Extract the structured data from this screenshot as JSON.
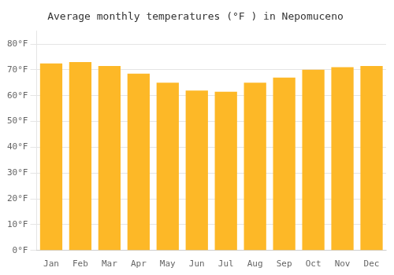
{
  "chart_data": {
    "type": "bar",
    "title": "Average monthly temperatures (°F ) in Nepomuceno",
    "categories": [
      "Jan",
      "Feb",
      "Mar",
      "Apr",
      "May",
      "Jun",
      "Jul",
      "Aug",
      "Sep",
      "Oct",
      "Nov",
      "Dec"
    ],
    "values": [
      72.5,
      73.0,
      71.5,
      68.5,
      65.0,
      62.0,
      61.5,
      65.0,
      67.0,
      70.0,
      71.0,
      71.5
    ],
    "color": "#FDB827",
    "ylim": [
      0,
      85
    ],
    "yticks": [
      {
        "value": 0,
        "label": "0°F"
      },
      {
        "value": 10,
        "label": "10°F"
      },
      {
        "value": 20,
        "label": "20°F"
      },
      {
        "value": 30,
        "label": "30°F"
      },
      {
        "value": 40,
        "label": "40°F"
      },
      {
        "value": 50,
        "label": "50°F"
      },
      {
        "value": 60,
        "label": "60°F"
      },
      {
        "value": 70,
        "label": "70°F"
      },
      {
        "value": 80,
        "label": "80°F"
      }
    ],
    "grid": true
  }
}
